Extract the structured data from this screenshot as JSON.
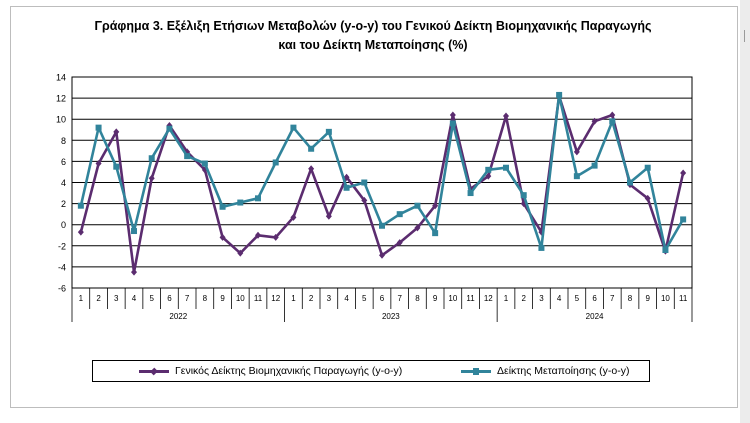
{
  "chart_data": {
    "type": "line",
    "title": "Γράφημα 3. Εξέλιξη Ετήσιων Μεταβολών (y-o-y) του Γενικού Δείκτη Βιομηχανικής Παραγωγής",
    "title_line2": "και του Δείκτη Μεταποίησης (%)",
    "ylim": [
      -6,
      14
    ],
    "yticks": [
      -6,
      -4,
      -2,
      0,
      2,
      4,
      6,
      8,
      10,
      12,
      14
    ],
    "months": [
      "1",
      "2",
      "3",
      "4",
      "5",
      "6",
      "7",
      "8",
      "9",
      "10",
      "11",
      "12",
      "1",
      "2",
      "3",
      "4",
      "5",
      "6",
      "7",
      "8",
      "9",
      "10",
      "11",
      "12",
      "1",
      "2",
      "3",
      "4",
      "5",
      "6",
      "7",
      "8",
      "9",
      "10",
      "11"
    ],
    "years": [
      {
        "label": "2022",
        "start": 0,
        "count": 12
      },
      {
        "label": "2023",
        "start": 12,
        "count": 12
      },
      {
        "label": "2024",
        "start": 24,
        "count": 11
      }
    ],
    "series": [
      {
        "name": "Γενικός Δείκτης Βιομηχανικής Παραγωγής (y-o-y)",
        "color": "#5b2c6f",
        "values": [
          -0.7,
          5.8,
          8.8,
          -4.5,
          4.4,
          9.4,
          6.9,
          5.2,
          -1.2,
          -2.7,
          -1.0,
          -1.2,
          0.7,
          5.3,
          0.8,
          4.5,
          2.3,
          -2.9,
          -1.7,
          -0.3,
          1.8,
          10.4,
          3.4,
          4.6,
          10.3,
          2.0,
          -0.7,
          12.2,
          6.9,
          9.8,
          10.4,
          3.8,
          2.5,
          -2.5,
          4.9
        ]
      },
      {
        "name": "Δείκτης Μεταποίησης (y-o-y)",
        "color": "#31849b",
        "values": [
          1.8,
          9.2,
          5.5,
          -0.6,
          6.3,
          9.1,
          6.5,
          5.8,
          1.7,
          2.1,
          2.5,
          5.9,
          9.2,
          7.2,
          8.8,
          3.5,
          4.0,
          -0.1,
          1.0,
          1.8,
          -0.8,
          9.6,
          3.0,
          5.2,
          5.4,
          2.8,
          -2.2,
          12.3,
          4.6,
          5.6,
          9.8,
          4.0,
          5.4,
          -2.4,
          0.5
        ]
      }
    ],
    "legend_position": "bottom",
    "grid": true
  }
}
